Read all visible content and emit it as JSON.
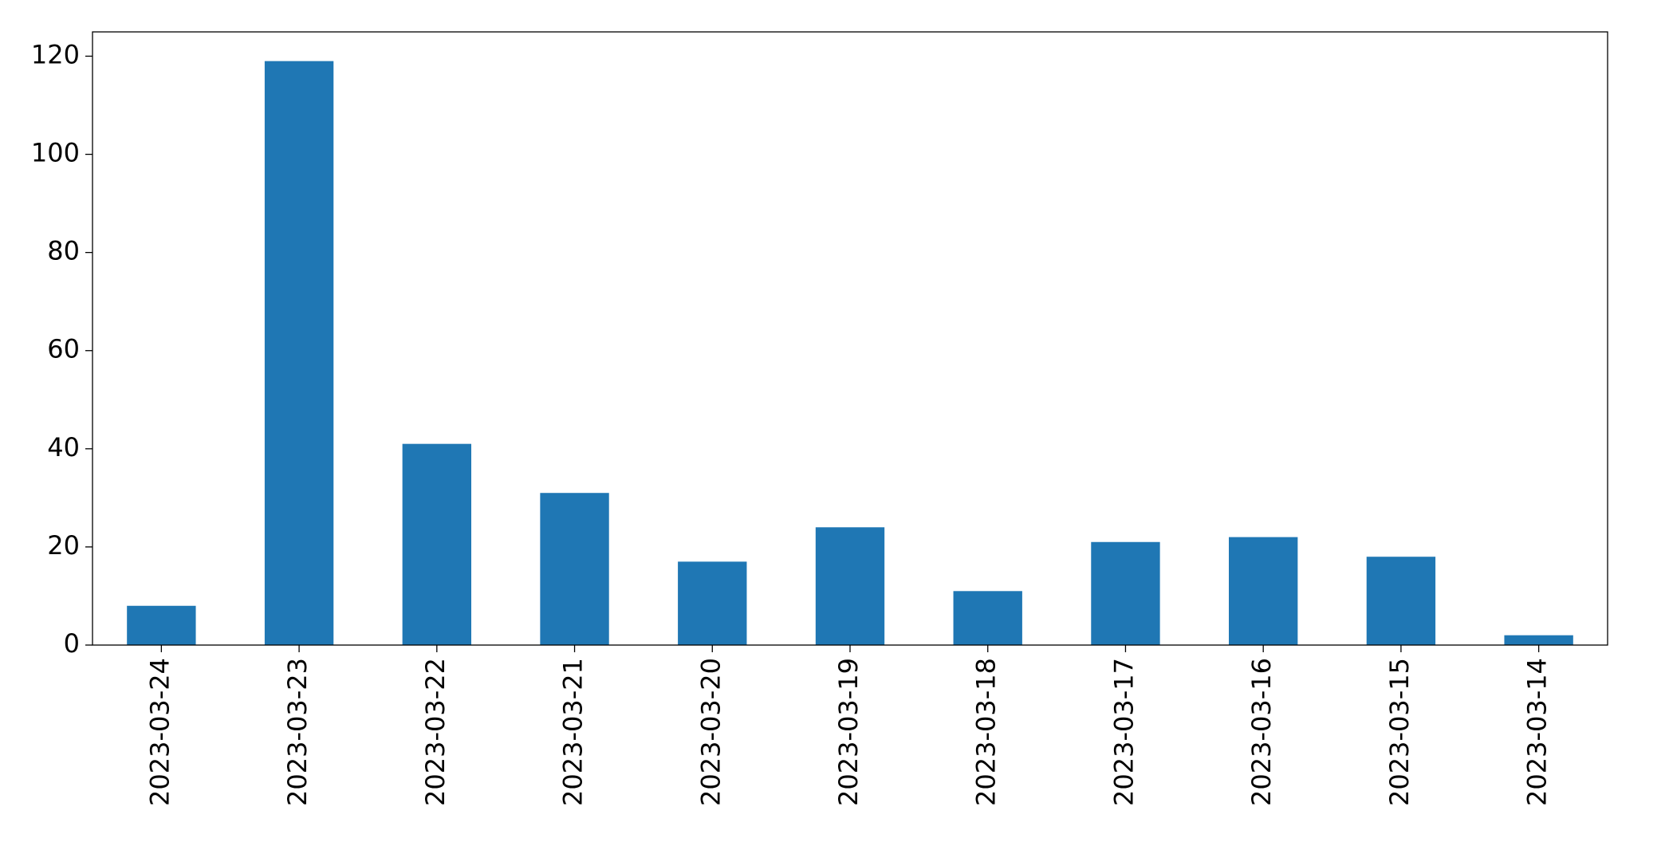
{
  "chart_data": {
    "type": "bar",
    "categories": [
      "2023-03-24",
      "2023-03-23",
      "2023-03-22",
      "2023-03-21",
      "2023-03-20",
      "2023-03-19",
      "2023-03-18",
      "2023-03-17",
      "2023-03-16",
      "2023-03-15",
      "2023-03-14"
    ],
    "values": [
      8,
      119,
      41,
      31,
      17,
      24,
      11,
      21,
      22,
      18,
      2
    ],
    "color": "#1f77b4",
    "ylim": [
      0,
      124.95
    ],
    "yticks": [
      0,
      20,
      40,
      60,
      80,
      100,
      120
    ],
    "grid": false
  }
}
